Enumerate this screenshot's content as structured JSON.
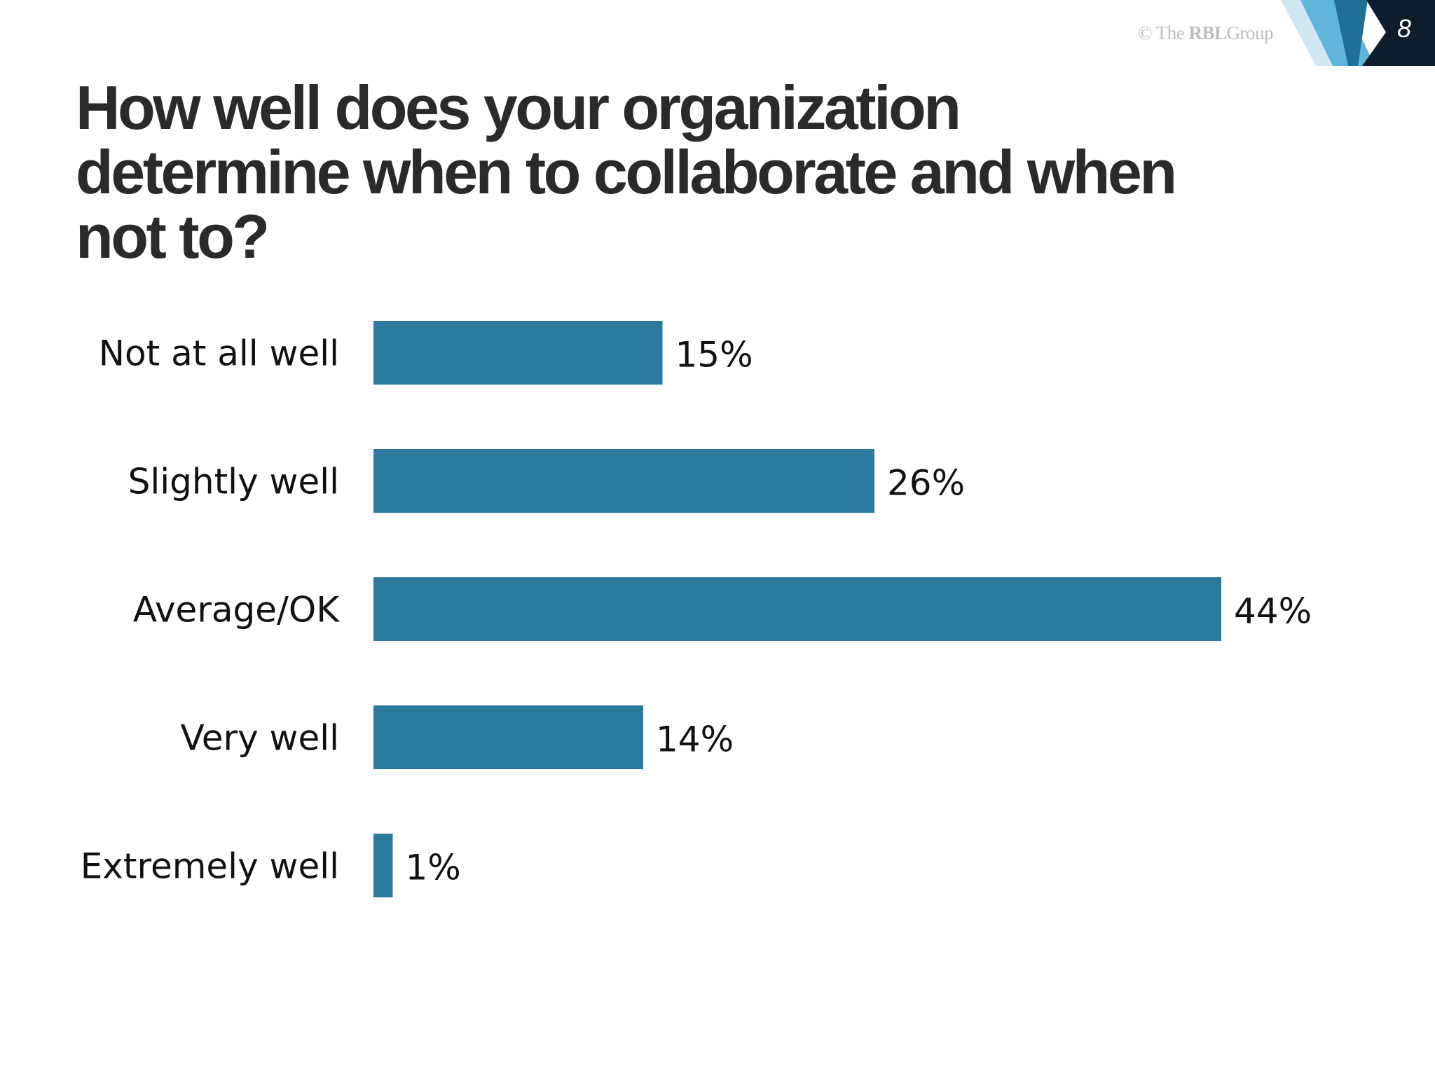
{
  "branding": {
    "logo_prefix": "© The ",
    "logo_bold": "RBL",
    "logo_suffix": "Group",
    "page_number": "8",
    "accent_dark": "#0c1e2e",
    "accent_mid": "#1f6f96",
    "accent_light": "#9fd3ea"
  },
  "chart_data": {
    "type": "bar",
    "orientation": "horizontal",
    "title": "How well does your organization determine when to collaborate and when not to?",
    "categories": [
      "Not at all well",
      "Slightly well",
      "Average/OK",
      "Very well",
      "Extremely well"
    ],
    "values": [
      15,
      26,
      44,
      14,
      1
    ],
    "value_labels": [
      "15%",
      "26%",
      "44%",
      "14%",
      "1%"
    ],
    "unit": "%",
    "bar_color": "#2b7a9e",
    "grid": false,
    "legend": "none"
  }
}
